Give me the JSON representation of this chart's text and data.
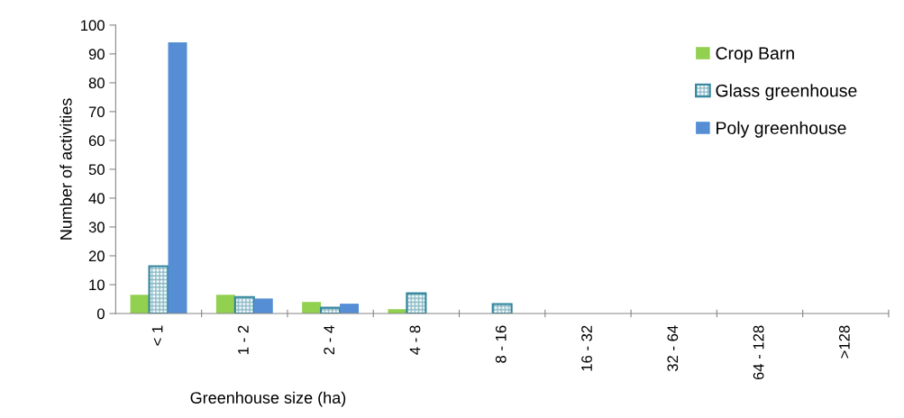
{
  "chart_data": {
    "type": "bar",
    "xlabel": "Greenhouse size (ha)",
    "ylabel": "Number of activities",
    "categories": [
      "< 1",
      "1 - 2",
      "2 - 4",
      "4 - 8",
      "8 - 16",
      "16 - 32",
      "32 - 64",
      "64 - 128",
      ">128"
    ],
    "series": [
      {
        "name": "Crop Barn",
        "color": "#92d050",
        "values": [
          6.5,
          6.5,
          4,
          1.5,
          0,
          0,
          0,
          0,
          0
        ]
      },
      {
        "name": "Glass greenhouse",
        "color": "#31859c",
        "values": [
          16.4,
          5.7,
          2,
          7,
          3.3,
          0,
          0,
          0,
          0
        ]
      },
      {
        "name": "Poly greenhouse",
        "color": "#558ed5",
        "values": [
          94,
          5.2,
          3.4,
          0,
          0,
          0,
          0,
          0,
          0
        ]
      }
    ],
    "ylim": [
      0,
      100
    ],
    "yticks": [
      0,
      10,
      20,
      30,
      40,
      50,
      60,
      70,
      80,
      90,
      100
    ],
    "grid": false,
    "legend": "top right"
  }
}
